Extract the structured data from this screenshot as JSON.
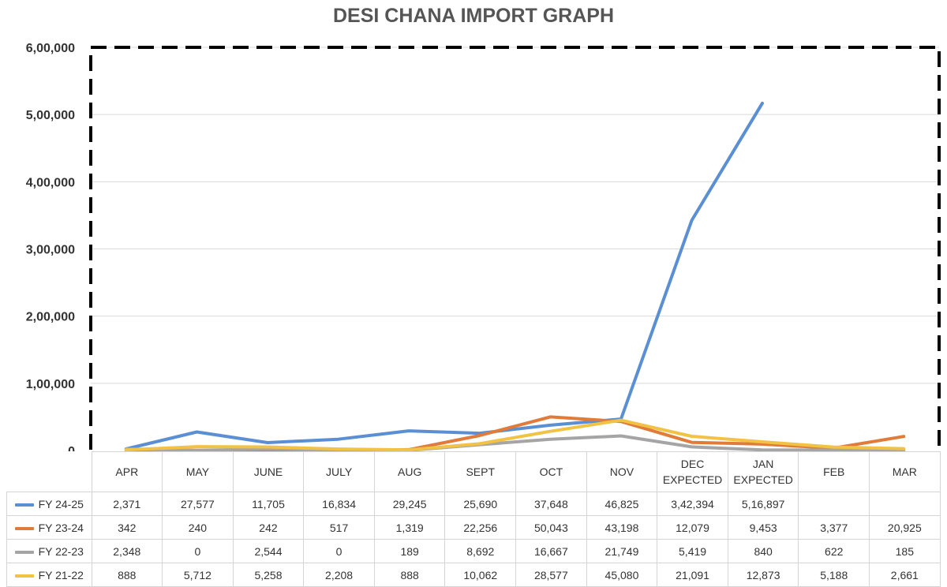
{
  "chart_data": {
    "type": "line",
    "title": "DESI CHANA IMPORT GRAPH",
    "categories": [
      "APR",
      "MAY",
      "JUNE",
      "JULY",
      "AUG",
      "SEPT",
      "OCT",
      "NOV",
      "DEC\nEXPECTED",
      "JAN\nEXPECTED",
      "FEB",
      "MAR"
    ],
    "ylim": [
      0,
      600000
    ],
    "y_ticks": [
      {
        "value": 0,
        "label": "0"
      },
      {
        "value": 100000,
        "label": "1,00,000"
      },
      {
        "value": 200000,
        "label": "2,00,000"
      },
      {
        "value": 300000,
        "label": "3,00,000"
      },
      {
        "value": 400000,
        "label": "4,00,000"
      },
      {
        "value": 500000,
        "label": "5,00,000"
      },
      {
        "value": 600000,
        "label": "6,00,000"
      }
    ],
    "grid": true,
    "legend": "table-below",
    "series": [
      {
        "name": "FY 24-25",
        "color": "#5b8fd4",
        "values": [
          2371,
          27577,
          11705,
          16834,
          29245,
          25690,
          37648,
          46825,
          342394,
          516897,
          null,
          null
        ],
        "labels": [
          "2,371",
          "27,577",
          "11,705",
          "16,834",
          "29,245",
          "25,690",
          "37,648",
          "46,825",
          "3,42,394",
          "5,16,897",
          "",
          ""
        ]
      },
      {
        "name": "FY 23-24",
        "color": "#e07b39",
        "values": [
          342,
          240,
          242,
          517,
          1319,
          22256,
          50043,
          43198,
          12079,
          9453,
          3377,
          20925
        ],
        "labels": [
          "342",
          "240",
          "242",
          "517",
          "1,319",
          "22,256",
          "50,043",
          "43,198",
          "12,079",
          "9,453",
          "3,377",
          "20,925"
        ]
      },
      {
        "name": "FY 22-23",
        "color": "#a5a5a5",
        "values": [
          2348,
          0,
          2544,
          0,
          189,
          8692,
          16667,
          21749,
          5419,
          840,
          622,
          185
        ],
        "labels": [
          "2,348",
          "0",
          "2,544",
          "0",
          "189",
          "8,692",
          "16,667",
          "21,749",
          "5,419",
          "840",
          "622",
          "185"
        ]
      },
      {
        "name": "FY 21-22",
        "color": "#f2c244",
        "values": [
          888,
          5712,
          5258,
          2208,
          888,
          10062,
          28577,
          45080,
          21091,
          12873,
          5188,
          2661
        ],
        "labels": [
          "888",
          "5,712",
          "5,258",
          "2,208",
          "888",
          "10,062",
          "28,577",
          "45,080",
          "21,091",
          "12,873",
          "5,188",
          "2,661"
        ]
      }
    ]
  }
}
